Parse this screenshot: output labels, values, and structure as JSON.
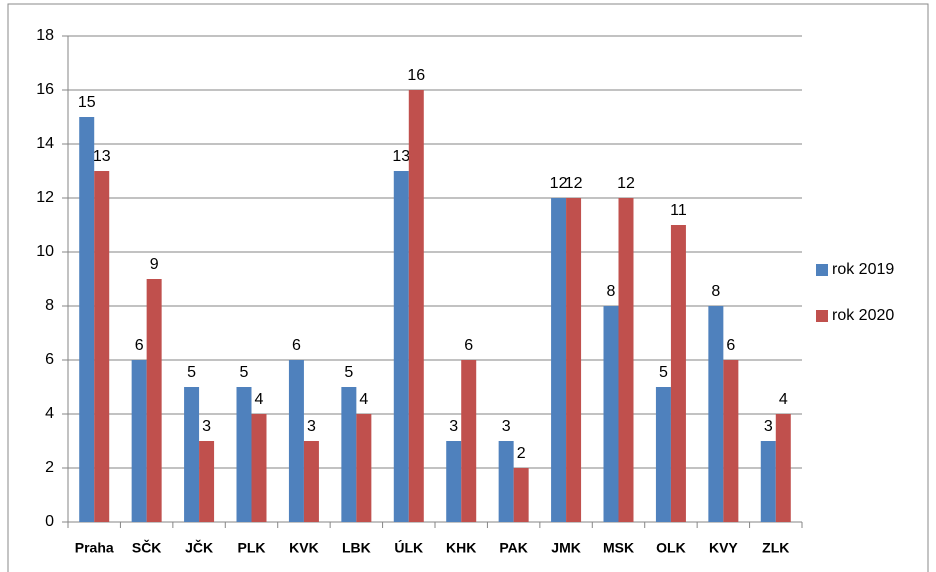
{
  "chart_data": {
    "type": "bar",
    "categories": [
      "Praha",
      "SČK",
      "JČK",
      "PLK",
      "KVK",
      "LBK",
      "ÚLK",
      "KHK",
      "PAK",
      "JMK",
      "MSK",
      "OLK",
      "KVY",
      "ZLK"
    ],
    "series": [
      {
        "name": "rok 2019",
        "color": "#4f81bd",
        "values": [
          15,
          6,
          5,
          5,
          6,
          5,
          13,
          3,
          3,
          12,
          8,
          5,
          8,
          3
        ]
      },
      {
        "name": "rok 2020",
        "color": "#c0504d",
        "values": [
          13,
          9,
          3,
          4,
          3,
          4,
          16,
          6,
          2,
          12,
          12,
          11,
          6,
          4
        ]
      }
    ],
    "ylim": [
      0,
      18
    ],
    "yticks": [
      0,
      2,
      4,
      6,
      8,
      10,
      12,
      14,
      16,
      18
    ],
    "grid": true,
    "legend": "right"
  }
}
